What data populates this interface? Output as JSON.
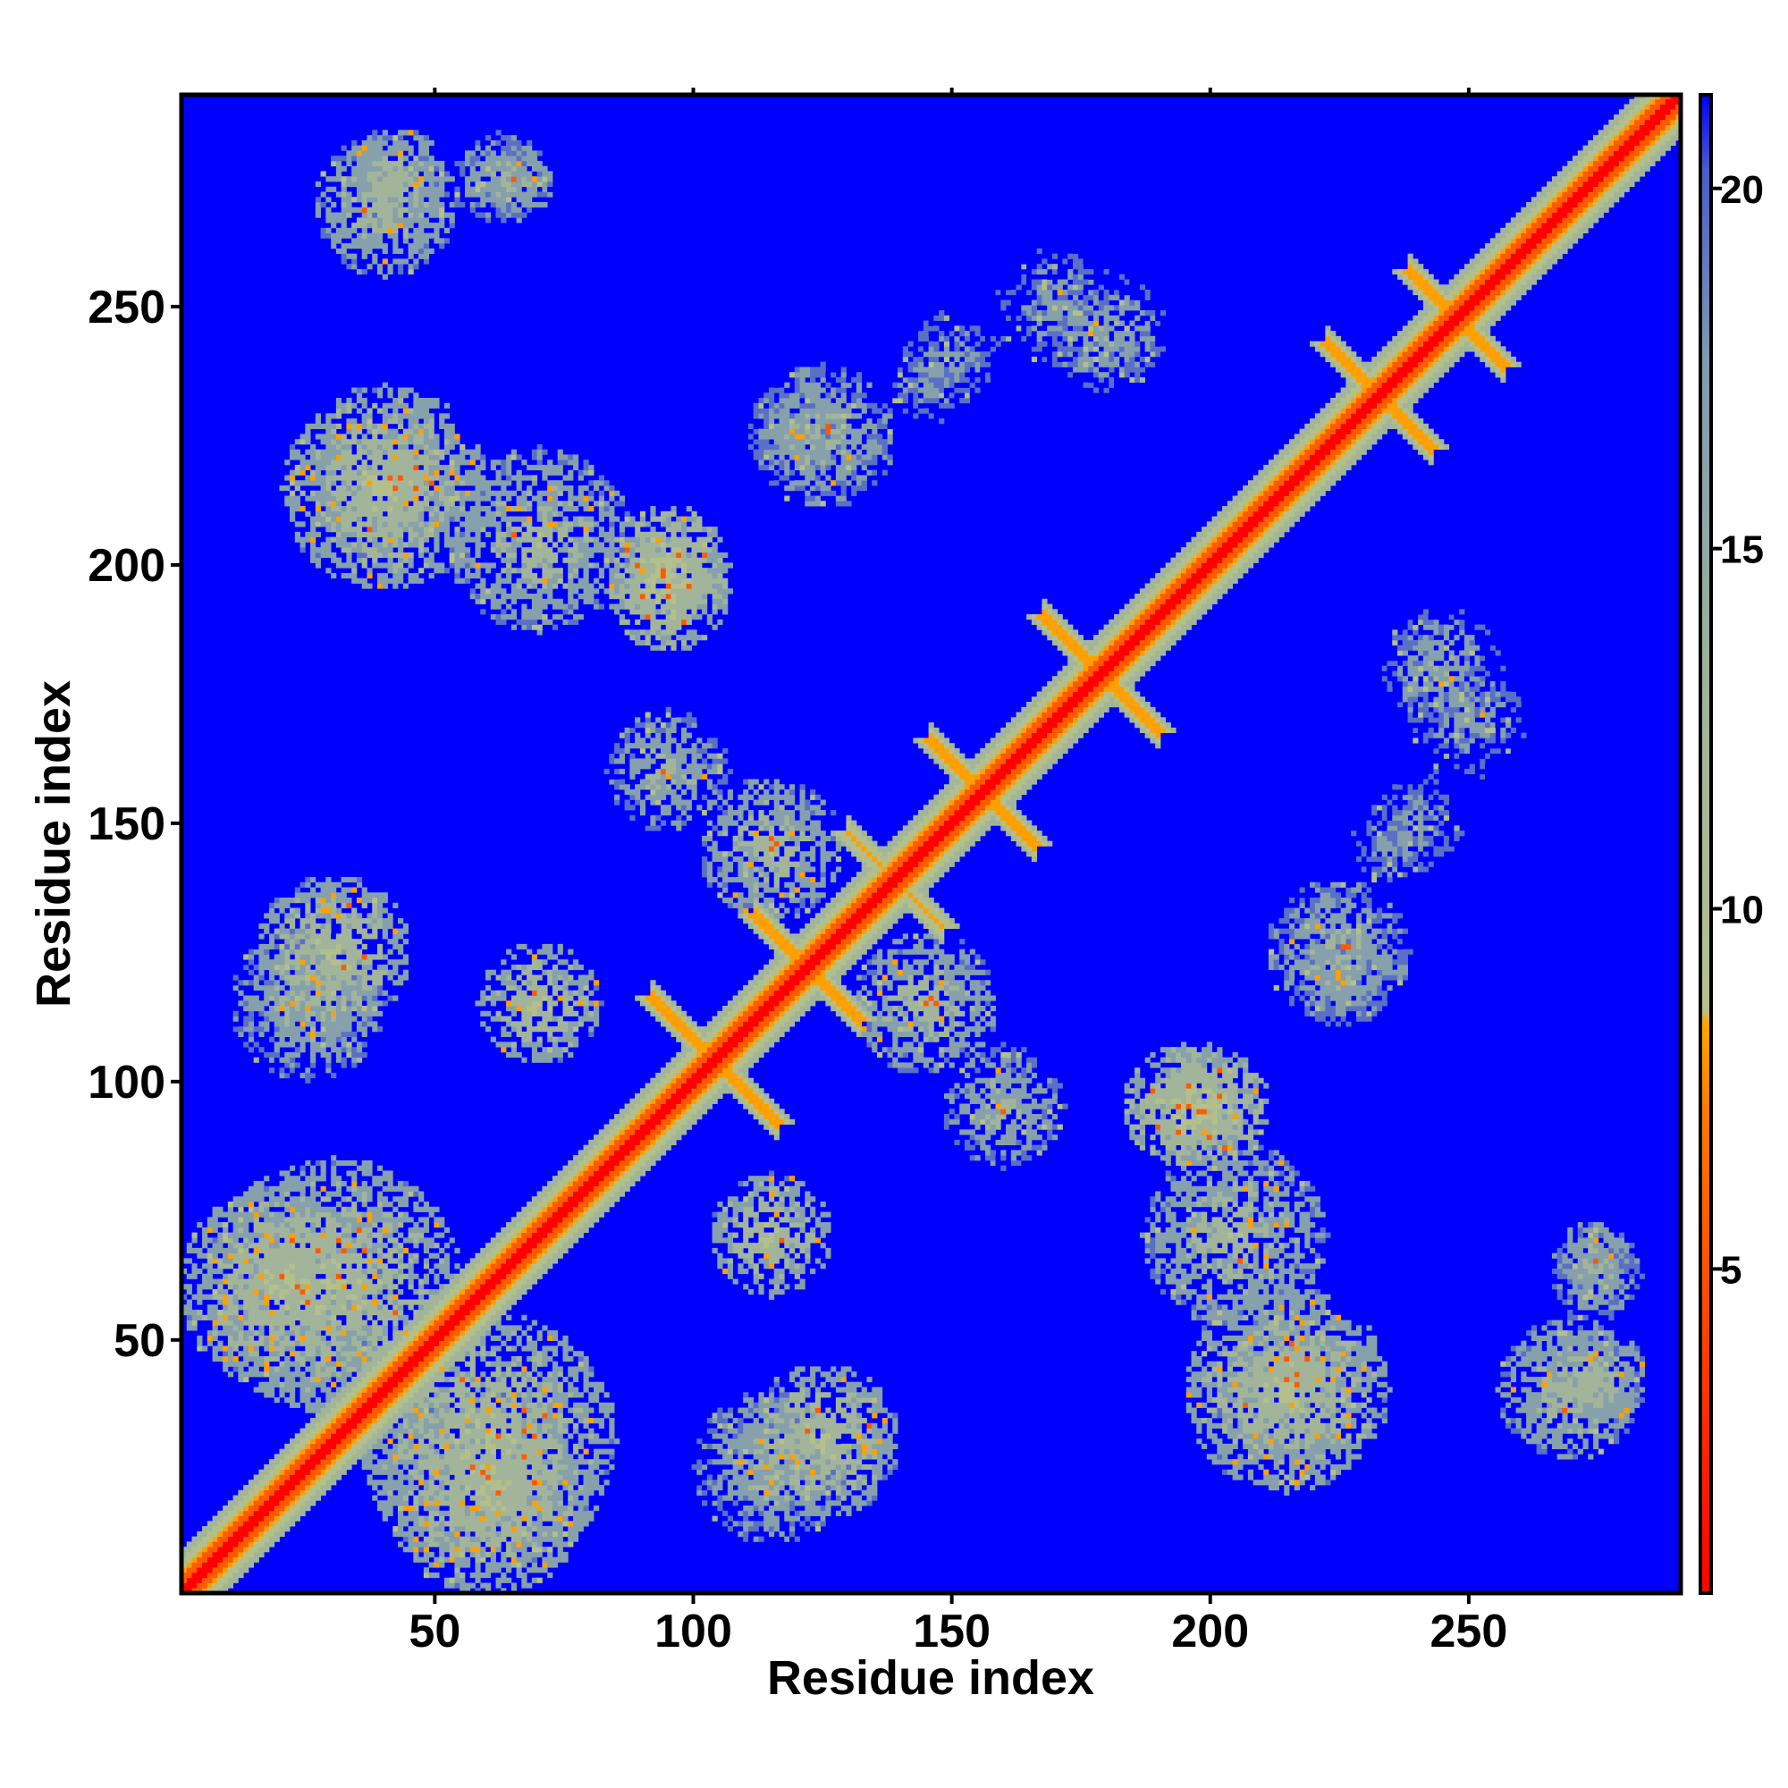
{
  "chart_data": {
    "type": "heatmap",
    "title": "",
    "xlabel": "Residue index",
    "ylabel": "Residue index",
    "xlim": [
      1,
      291
    ],
    "ylim": [
      1,
      291
    ],
    "x_ticks": [
      50,
      100,
      150,
      200,
      250
    ],
    "y_ticks": [
      50,
      100,
      150,
      200,
      250
    ],
    "colorbar": {
      "ticks": [
        5,
        10,
        15,
        20
      ],
      "range": [
        0.5,
        21.3
      ],
      "colors": [
        "#ff0000",
        "#ff7a00",
        "#ffa500",
        "#a9c08a",
        "#7f9cb0",
        "#0000ff"
      ]
    },
    "background_value": 21,
    "diagonal_value": 1,
    "contact_bands": [
      {
        "type": "antidiagonal",
        "center": [
          103,
          103
        ],
        "length": 24,
        "value": 6
      },
      {
        "type": "antidiagonal",
        "center": [
          121,
          121
        ],
        "length": 20,
        "value": 6
      },
      {
        "type": "antidiagonal",
        "center": [
          138,
          138
        ],
        "length": 18,
        "value": 7
      },
      {
        "type": "antidiagonal",
        "center": [
          155,
          155
        ],
        "length": 20,
        "value": 6
      },
      {
        "type": "antidiagonal",
        "center": [
          178,
          178
        ],
        "length": 22,
        "value": 6
      },
      {
        "type": "antidiagonal",
        "center": [
          232,
          232
        ],
        "length": 20,
        "value": 6
      },
      {
        "type": "antidiagonal",
        "center": [
          247,
          247
        ],
        "length": 18,
        "value": 6
      },
      {
        "type": "blob",
        "center": [
          40,
          215
        ],
        "radius": 14,
        "value": 12
      },
      {
        "type": "blob",
        "center": [
          42,
          275
        ],
        "radius": 10,
        "value": 13
      },
      {
        "type": "blob",
        "center": [
          62,
          275
        ],
        "radius": 9,
        "value": 14
      },
      {
        "type": "blob",
        "center": [
          95,
          200
        ],
        "radius": 12,
        "value": 11
      },
      {
        "type": "blob",
        "center": [
          120,
          225
        ],
        "radius": 10,
        "value": 15
      },
      {
        "type": "blob",
        "center": [
          145,
          235
        ],
        "radius": 8,
        "value": 16
      },
      {
        "type": "blob",
        "center": [
          170,
          250
        ],
        "radius": 12,
        "value": 16
      },
      {
        "type": "blob",
        "center": [
          30,
          125
        ],
        "radius": 15,
        "value": 12
      },
      {
        "type": "blob",
        "center": [
          70,
          115
        ],
        "radius": 12,
        "value": 12
      },
      {
        "type": "blob",
        "center": [
          30,
          60
        ],
        "radius": 25,
        "value": 12
      },
      {
        "type": "blob",
        "center": [
          60,
          20
        ],
        "radius": 20,
        "value": 12
      },
      {
        "type": "blob",
        "center": [
          115,
          25
        ],
        "radius": 15,
        "value": 14
      },
      {
        "type": "blob",
        "center": [
          215,
          40
        ],
        "radius": 20,
        "value": 12
      },
      {
        "type": "blob",
        "center": [
          270,
          40
        ],
        "radius": 14,
        "value": 13
      },
      {
        "type": "blob",
        "center": [
          275,
          65
        ],
        "radius": 8,
        "value": 14
      },
      {
        "type": "blob",
        "center": [
          205,
          70
        ],
        "radius": 18,
        "value": 13
      },
      {
        "type": "blob",
        "center": [
          195,
          95
        ],
        "radius": 12,
        "value": 11
      },
      {
        "type": "blob",
        "center": [
          225,
          125
        ],
        "radius": 14,
        "value": 14
      },
      {
        "type": "blob",
        "center": [
          240,
          150
        ],
        "radius": 10,
        "value": 16
      },
      {
        "type": "blob",
        "center": [
          245,
          180
        ],
        "radius": 12,
        "value": 15
      },
      {
        "type": "blob",
        "center": [
          160,
          95
        ],
        "radius": 12,
        "value": 14
      },
      {
        "type": "blob",
        "center": [
          145,
          115
        ],
        "radius": 14,
        "value": 13
      }
    ]
  }
}
